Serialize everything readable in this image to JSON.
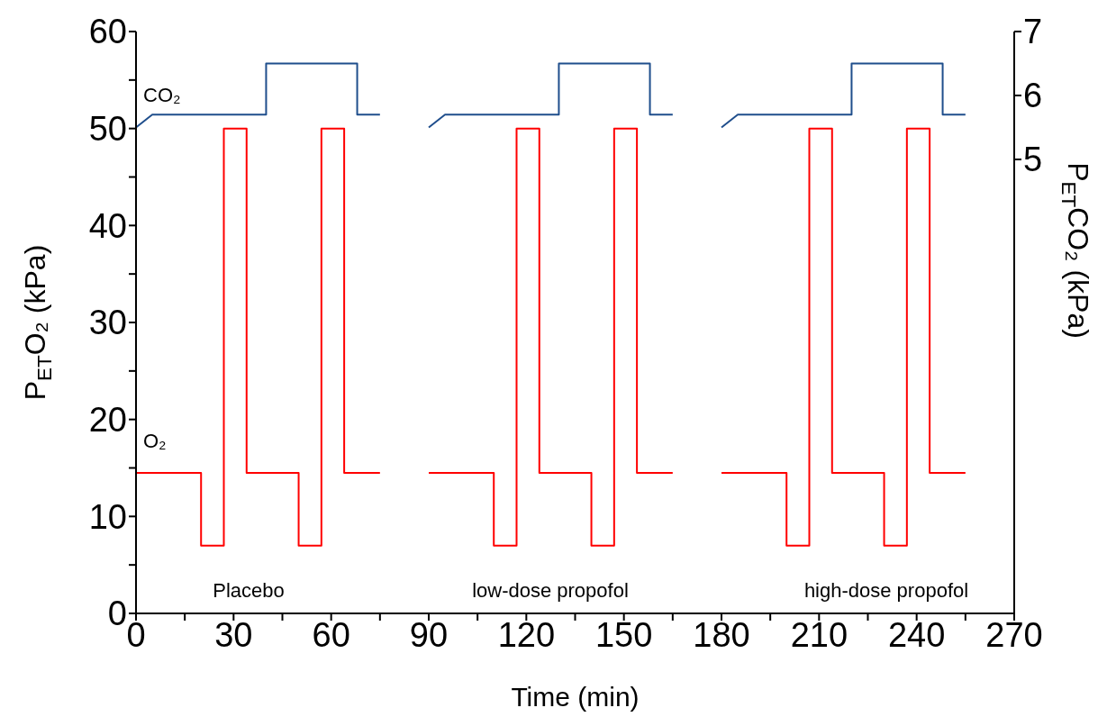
{
  "chart_data": {
    "type": "line",
    "xlabel": "Time (min)",
    "ylabel": "P$_{ET}$O₂ (kPa)",
    "y2label": "P$_{ET}$CO₂ (kPa)",
    "xlim": [
      0,
      270
    ],
    "xticks": [
      0,
      {
        "value": 15,
        "label": null
      },
      30,
      {
        "value": 45,
        "label": null
      },
      60,
      {
        "value": 75,
        "label": null
      },
      90,
      {
        "value": 105,
        "label": null
      },
      120,
      {
        "value": 135,
        "label": null
      },
      150,
      {
        "value": 165,
        "label": null
      },
      180,
      {
        "value": 195,
        "label": null
      },
      210,
      {
        "value": 225,
        "label": null
      },
      240,
      {
        "value": 255,
        "label": null
      },
      270
    ],
    "ylim": [
      0,
      60
    ],
    "yticks": [
      0,
      {
        "value": 5,
        "label": null
      },
      10,
      {
        "value": 15,
        "label": null
      },
      20,
      {
        "value": 25,
        "label": null
      },
      30,
      {
        "value": 35,
        "label": null
      },
      40,
      {
        "value": 45,
        "label": null
      },
      50,
      {
        "value": 55,
        "label": null
      },
      60
    ],
    "y2lim": [
      -2.1,
      7
    ],
    "y2ticks": [
      5,
      6,
      7
    ],
    "series": [
      {
        "name": "O₂",
        "color": "#ff0000",
        "x": [
          0,
          20,
          20,
          27,
          27,
          34,
          34,
          50,
          50,
          57,
          57,
          64,
          64,
          75,
          82,
          90,
          110,
          110,
          117,
          117,
          124,
          124,
          140,
          140,
          147,
          147,
          154,
          154,
          165,
          172,
          180,
          200,
          200,
          207,
          207,
          214,
          214,
          230,
          230,
          237,
          237,
          244,
          244,
          255
        ],
        "values": [
          14.5,
          14.5,
          7,
          7,
          50,
          50,
          14.5,
          14.5,
          7,
          7,
          50,
          50,
          14.5,
          14.5,
          null,
          14.5,
          14.5,
          7,
          7,
          50,
          50,
          14.5,
          14.5,
          7,
          7,
          50,
          50,
          14.5,
          14.5,
          null,
          14.5,
          14.5,
          7,
          7,
          50,
          50,
          14.5,
          14.5,
          7,
          7,
          50,
          50,
          14.5,
          14.5
        ]
      },
      {
        "name": "CO₂",
        "color": "#1f4e8c",
        "axis": "y2",
        "x": [
          0,
          5,
          40,
          40,
          68,
          68,
          75,
          82,
          90,
          95,
          130,
          130,
          158,
          158,
          165,
          172,
          180,
          185,
          220,
          220,
          248,
          248,
          255
        ],
        "values": [
          5.5,
          5.7,
          5.7,
          6.5,
          6.5,
          5.7,
          5.7,
          null,
          5.5,
          5.7,
          5.7,
          6.5,
          6.5,
          5.7,
          5.7,
          null,
          5.5,
          5.7,
          5.7,
          6.5,
          6.5,
          5.7,
          5.7
        ]
      }
    ],
    "annotations": [
      "Placebo",
      "low-dose propofol",
      "high-dose propofol"
    ]
  }
}
